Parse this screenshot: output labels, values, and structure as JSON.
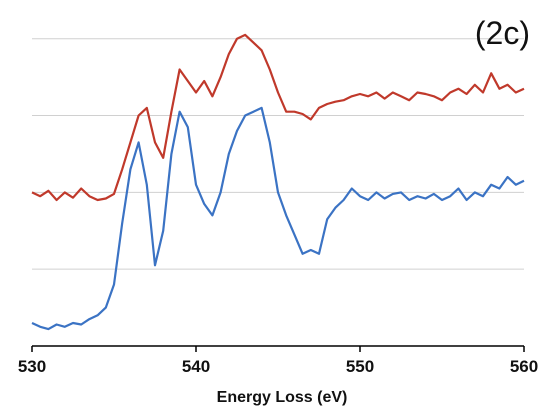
{
  "chart_data": {
    "type": "line",
    "panel_label": "(2c)",
    "xlabel": "Energy Loss (eV)",
    "ylabel": "",
    "xlim": [
      530,
      560
    ],
    "ylim": [
      0,
      4.4
    ],
    "x_ticks": [
      530,
      540,
      550,
      560
    ],
    "y_gridlines": [
      1,
      2,
      3,
      4
    ],
    "grid": "horizontal",
    "axis_color": "#000000",
    "grid_color": "#d0d0d0",
    "series": [
      {
        "color": "#c0392b",
        "x": [
          530.0,
          530.5,
          531.0,
          531.5,
          532.0,
          532.5,
          533.0,
          533.5,
          534.0,
          534.5,
          535.0,
          535.5,
          536.0,
          536.5,
          537.0,
          537.5,
          538.0,
          538.5,
          539.0,
          539.5,
          540.0,
          540.5,
          541.0,
          541.5,
          542.0,
          542.5,
          543.0,
          543.5,
          544.0,
          544.5,
          545.0,
          545.5,
          546.0,
          546.5,
          547.0,
          547.5,
          548.0,
          548.5,
          549.0,
          549.5,
          550.0,
          550.5,
          551.0,
          551.5,
          552.0,
          552.5,
          553.0,
          553.5,
          554.0,
          554.5,
          555.0,
          555.5,
          556.0,
          556.5,
          557.0,
          557.5,
          558.0,
          558.5,
          559.0,
          559.5,
          560.0
        ],
        "values": [
          2.0,
          1.95,
          2.02,
          1.9,
          2.0,
          1.93,
          2.05,
          1.95,
          1.9,
          1.92,
          1.98,
          2.3,
          2.65,
          3.0,
          3.1,
          2.65,
          2.45,
          3.05,
          3.6,
          3.45,
          3.3,
          3.45,
          3.25,
          3.5,
          3.8,
          4.0,
          4.05,
          3.95,
          3.85,
          3.6,
          3.3,
          3.05,
          3.05,
          3.02,
          2.95,
          3.1,
          3.15,
          3.18,
          3.2,
          3.25,
          3.28,
          3.25,
          3.3,
          3.22,
          3.3,
          3.25,
          3.2,
          3.3,
          3.28,
          3.25,
          3.2,
          3.3,
          3.35,
          3.28,
          3.4,
          3.3,
          3.55,
          3.35,
          3.4,
          3.3,
          3.35
        ]
      },
      {
        "color": "#3b73c4",
        "x": [
          530.0,
          530.5,
          531.0,
          531.5,
          532.0,
          532.5,
          533.0,
          533.5,
          534.0,
          534.5,
          535.0,
          535.5,
          536.0,
          536.5,
          537.0,
          537.5,
          538.0,
          538.5,
          539.0,
          539.5,
          540.0,
          540.5,
          541.0,
          541.5,
          542.0,
          542.5,
          543.0,
          543.5,
          544.0,
          544.5,
          545.0,
          545.5,
          546.0,
          546.5,
          547.0,
          547.5,
          548.0,
          548.5,
          549.0,
          549.5,
          550.0,
          550.5,
          551.0,
          551.5,
          552.0,
          552.5,
          553.0,
          553.5,
          554.0,
          554.5,
          555.0,
          555.5,
          556.0,
          556.5,
          557.0,
          557.5,
          558.0,
          558.5,
          559.0,
          559.5,
          560.0
        ],
        "values": [
          0.3,
          0.25,
          0.22,
          0.28,
          0.25,
          0.3,
          0.28,
          0.35,
          0.4,
          0.5,
          0.8,
          1.6,
          2.3,
          2.65,
          2.1,
          1.05,
          1.5,
          2.5,
          3.05,
          2.85,
          2.1,
          1.85,
          1.7,
          2.0,
          2.5,
          2.8,
          3.0,
          3.05,
          3.1,
          2.65,
          2.0,
          1.7,
          1.45,
          1.2,
          1.25,
          1.2,
          1.65,
          1.8,
          1.9,
          2.05,
          1.95,
          1.9,
          2.0,
          1.92,
          1.98,
          2.0,
          1.9,
          1.95,
          1.92,
          1.98,
          1.9,
          1.95,
          2.05,
          1.9,
          2.0,
          1.95,
          2.1,
          2.05,
          2.2,
          2.1,
          2.15
        ]
      }
    ]
  }
}
